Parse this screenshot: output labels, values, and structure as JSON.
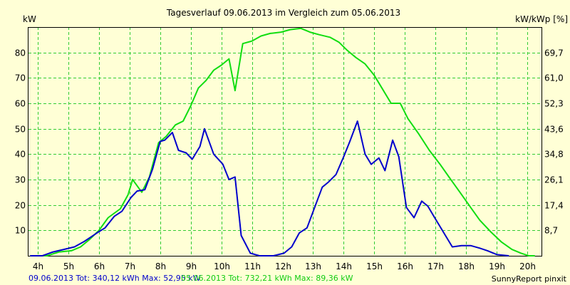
{
  "chart_data": {
    "type": "line",
    "title": "Tagesverlauf 09.06.2013 im Vergleich zum 05.06.2013",
    "ylabel_left": "kW",
    "ylabel_right": "kW/kWp [%]",
    "ylim": [
      0,
      90
    ],
    "grid": true,
    "x_ticks": [
      "4h",
      "5h",
      "6h",
      "7h",
      "8h",
      "9h",
      "10h",
      "11h",
      "12h",
      "13h",
      "14h",
      "15h",
      "16h",
      "17h",
      "18h",
      "19h",
      "20h"
    ],
    "y_ticks_left": [
      "10",
      "20",
      "30",
      "40",
      "50",
      "60",
      "70",
      "80"
    ],
    "y_ticks_right": [
      "8,7",
      "17,4",
      "26,1",
      "34,8",
      "43,6",
      "52,3",
      "61,0",
      "69,7"
    ],
    "footer_credit": "SunnyReport pinxit",
    "series": [
      {
        "name": "09.06.2013",
        "summary": "09.06.2013 Tot: 340,12 kWh Max: 52,95 kW",
        "color": "#0000cc",
        "points": [
          [
            3.75,
            0
          ],
          [
            4.15,
            0
          ],
          [
            4.5,
            1.5
          ],
          [
            4.85,
            2.5
          ],
          [
            5.2,
            3.5
          ],
          [
            5.5,
            5.5
          ],
          [
            5.75,
            7.5
          ],
          [
            6.0,
            9.5
          ],
          [
            6.2,
            11
          ],
          [
            6.5,
            15.5
          ],
          [
            6.75,
            17.5
          ],
          [
            7.05,
            23
          ],
          [
            7.25,
            25.5
          ],
          [
            7.5,
            26
          ],
          [
            7.75,
            34
          ],
          [
            8.0,
            45
          ],
          [
            8.15,
            45.5
          ],
          [
            8.4,
            48.5
          ],
          [
            8.6,
            41.5
          ],
          [
            8.85,
            40.5
          ],
          [
            9.05,
            38
          ],
          [
            9.3,
            43
          ],
          [
            9.45,
            50
          ],
          [
            9.75,
            40
          ],
          [
            10.05,
            36
          ],
          [
            10.25,
            30
          ],
          [
            10.45,
            31
          ],
          [
            10.65,
            8
          ],
          [
            10.95,
            1
          ],
          [
            11.25,
            0
          ],
          [
            11.7,
            0
          ],
          [
            12.05,
            1
          ],
          [
            12.3,
            3.5
          ],
          [
            12.55,
            9
          ],
          [
            12.8,
            11
          ],
          [
            13.05,
            19
          ],
          [
            13.3,
            27
          ],
          [
            13.5,
            29
          ],
          [
            13.75,
            32
          ],
          [
            14.0,
            39
          ],
          [
            14.2,
            45
          ],
          [
            14.45,
            53
          ],
          [
            14.7,
            40
          ],
          [
            14.9,
            36
          ],
          [
            15.15,
            38.5
          ],
          [
            15.35,
            33.5
          ],
          [
            15.6,
            45.5
          ],
          [
            15.8,
            39
          ],
          [
            16.05,
            19
          ],
          [
            16.3,
            15
          ],
          [
            16.55,
            21.5
          ],
          [
            16.75,
            19.5
          ],
          [
            16.95,
            15.5
          ],
          [
            17.2,
            10.5
          ],
          [
            17.55,
            3.5
          ],
          [
            17.85,
            4
          ],
          [
            18.15,
            4
          ],
          [
            18.45,
            3
          ],
          [
            18.7,
            2
          ],
          [
            19.0,
            0.5
          ],
          [
            19.4,
            0
          ]
        ]
      },
      {
        "name": "05.06.2013",
        "summary": "05.06.2013 Tot: 732,21 kWh Max: 89,36 kW",
        "color": "#11dd11",
        "points": [
          [
            3.75,
            0
          ],
          [
            4.3,
            0
          ],
          [
            4.7,
            1.5
          ],
          [
            5.1,
            2
          ],
          [
            5.4,
            3.5
          ],
          [
            5.7,
            6.5
          ],
          [
            6.0,
            10
          ],
          [
            6.3,
            15
          ],
          [
            6.7,
            18.5
          ],
          [
            6.95,
            24
          ],
          [
            7.1,
            30
          ],
          [
            7.4,
            25
          ],
          [
            7.65,
            31
          ],
          [
            7.95,
            44.5
          ],
          [
            8.2,
            47
          ],
          [
            8.5,
            51.5
          ],
          [
            8.75,
            53
          ],
          [
            9.0,
            59
          ],
          [
            9.25,
            66
          ],
          [
            9.5,
            69
          ],
          [
            9.75,
            73
          ],
          [
            10.0,
            75
          ],
          [
            10.25,
            77.5
          ],
          [
            10.45,
            65
          ],
          [
            10.7,
            83.5
          ],
          [
            11.0,
            84.5
          ],
          [
            11.3,
            86.5
          ],
          [
            11.6,
            87.5
          ],
          [
            11.95,
            88
          ],
          [
            12.25,
            89
          ],
          [
            12.6,
            89.5
          ],
          [
            12.9,
            88
          ],
          [
            13.2,
            87
          ],
          [
            13.55,
            86
          ],
          [
            13.85,
            84
          ],
          [
            14.1,
            81
          ],
          [
            14.4,
            78
          ],
          [
            14.7,
            75.5
          ],
          [
            15.0,
            71
          ],
          [
            15.3,
            65
          ],
          [
            15.55,
            60
          ],
          [
            15.85,
            60
          ],
          [
            16.1,
            54
          ],
          [
            16.45,
            48
          ],
          [
            16.8,
            41.5
          ],
          [
            17.15,
            36
          ],
          [
            17.5,
            30
          ],
          [
            17.8,
            25
          ],
          [
            18.15,
            19
          ],
          [
            18.45,
            14
          ],
          [
            18.8,
            9.5
          ],
          [
            19.15,
            5.5
          ],
          [
            19.5,
            2.5
          ],
          [
            19.8,
            1
          ],
          [
            20.05,
            0
          ],
          [
            20.25,
            0
          ]
        ]
      }
    ]
  }
}
